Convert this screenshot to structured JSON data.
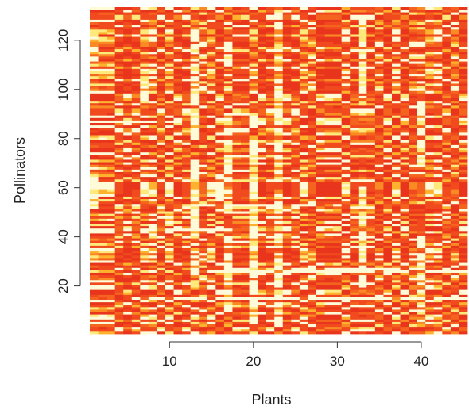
{
  "chart_data": {
    "type": "heatmap",
    "title": "",
    "xlabel": "Plants",
    "ylabel": "Pollinators",
    "xlim": [
      0.5,
      45.5
    ],
    "ylim": [
      0.5,
      133.5
    ],
    "n_cols": 45,
    "n_rows": 133,
    "xticks": [
      "10",
      "20",
      "30",
      "40"
    ],
    "yticks": [
      "20",
      "40",
      "60",
      "80",
      "100",
      "120"
    ],
    "palette": [
      "#e8351c",
      "#f04a1e",
      "#f5641f",
      "#fa8a24",
      "#ffb22e",
      "#ffe97a",
      "#fffbd8"
    ],
    "value_range": [
      0,
      1
    ],
    "grid": false,
    "legend": "none",
    "bright_columns": [
      {
        "x": 1,
        "rows": [
          [
            52,
            64
          ],
          [
            112,
            122
          ]
        ]
      },
      {
        "x": 7,
        "rows": [
          [
            96,
            106
          ]
        ]
      },
      {
        "x": 8,
        "rows": [
          [
            40,
            44
          ]
        ]
      },
      {
        "x": 10,
        "rows": [
          [
            46,
            50
          ]
        ]
      },
      {
        "x": 13,
        "rows": [
          [
            20,
            30
          ],
          [
            40,
            70
          ],
          [
            80,
            100
          ],
          [
            104,
            124
          ]
        ]
      },
      {
        "x": 16,
        "rows": [
          [
            55,
            65
          ]
        ]
      },
      {
        "x": 17,
        "rows": [
          [
            10,
            40
          ],
          [
            50,
            90
          ],
          [
            110,
            120
          ]
        ]
      },
      {
        "x": 20,
        "rows": [
          [
            5,
            80
          ],
          [
            85,
            90
          ]
        ]
      },
      {
        "x": 23,
        "rows": [
          [
            5,
            132
          ]
        ]
      },
      {
        "x": 33,
        "rows": [
          [
            20,
            60
          ],
          [
            95,
            130
          ]
        ]
      },
      {
        "x": 40,
        "rows": [
          [
            5,
            40
          ],
          [
            70,
            95
          ]
        ]
      }
    ],
    "bright_rows": [
      {
        "y": 15,
        "cols": [
          [
            6,
            45
          ]
        ]
      },
      {
        "y": 26,
        "cols": [
          [
            13,
            45
          ]
        ]
      },
      {
        "y": 27,
        "cols": [
          [
            23,
            40
          ]
        ]
      },
      {
        "y": 43,
        "cols": [
          [
            1,
            17
          ]
        ]
      },
      {
        "y": 53,
        "cols": [
          [
            13,
            30
          ]
        ]
      },
      {
        "y": 87,
        "cols": [
          [
            1,
            11
          ]
        ]
      }
    ]
  }
}
